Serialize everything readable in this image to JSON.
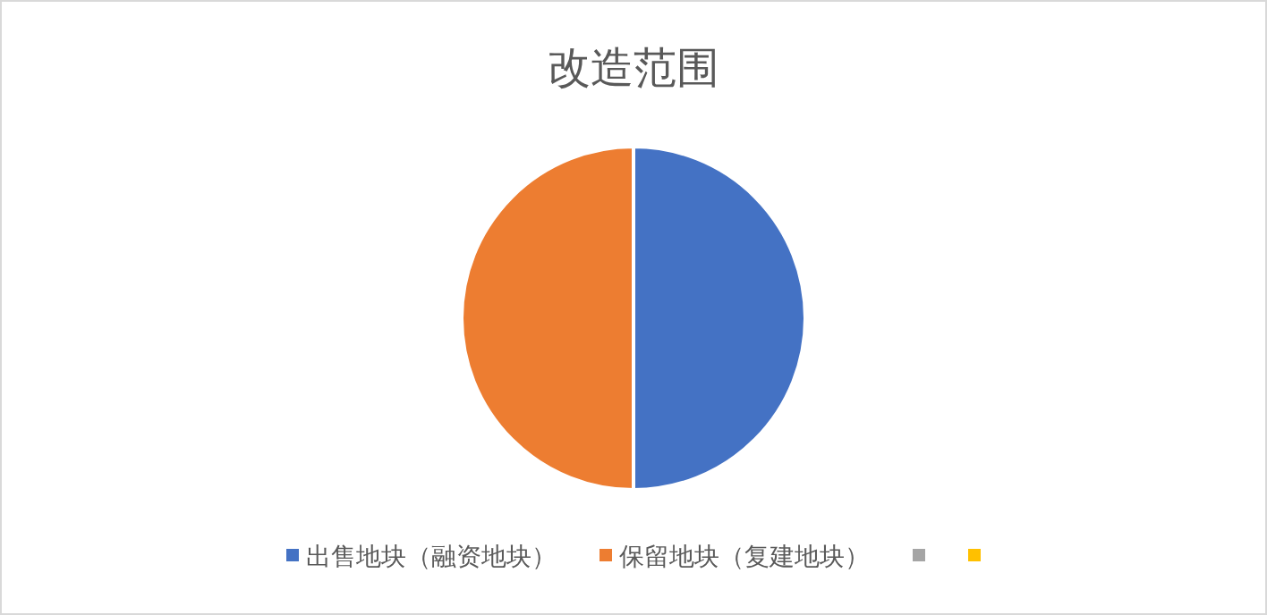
{
  "chart_data": {
    "type": "pie",
    "title": "改造范围",
    "categories": [
      "出售地块（融资地块）",
      "保留地块（复建地块）",
      null,
      null
    ],
    "values": [
      50,
      50,
      0,
      0
    ],
    "colors": [
      "#4472c4",
      "#ed7d31",
      "#a5a5a5",
      "#ffc000"
    ],
    "legend": "bottom"
  }
}
